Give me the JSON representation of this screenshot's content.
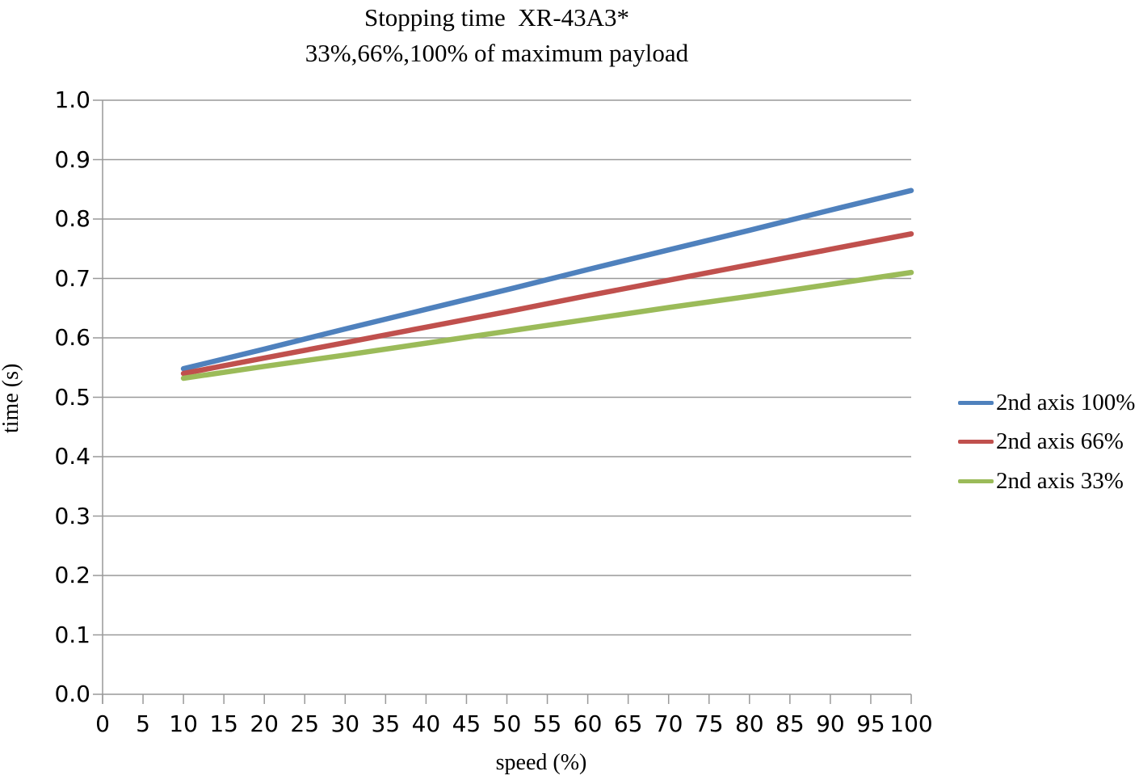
{
  "title": "Stopping time  XR-43A3*",
  "subtitle": "33%,66%,100% of maximum payload",
  "colors": {
    "gridline": "#999999",
    "axis": "#999999",
    "text": "#000000",
    "series_blue": "#4F81BD",
    "series_red": "#C0504D",
    "series_green": "#9BBB59"
  },
  "chart_data": {
    "type": "line",
    "title": "Stopping time  XR-43A3*",
    "subtitle": "33%,66%,100% of maximum payload",
    "xlabel": "speed (%)",
    "ylabel": "time (s)",
    "xlim": [
      0,
      100
    ],
    "ylim": [
      0.0,
      1.0
    ],
    "grid": "horizontal",
    "legend_position": "right",
    "x_tick_labels": [
      "0",
      "5",
      "10",
      "15",
      "20",
      "25",
      "30",
      "35",
      "40",
      "45",
      "50",
      "55",
      "60",
      "65",
      "70",
      "75",
      "80",
      "85",
      "90",
      "95",
      "100"
    ],
    "y_tick_labels": [
      "0.0",
      "0.1",
      "0.2",
      "0.3",
      "0.4",
      "0.5",
      "0.6",
      "0.7",
      "0.8",
      "0.9",
      "1.0"
    ],
    "x": [
      10,
      20,
      30,
      40,
      50,
      60,
      70,
      80,
      90,
      100
    ],
    "series": [
      {
        "name": "2nd axis 100%",
        "color": "#4F81BD",
        "values": [
          0.548,
          0.581,
          0.615,
          0.648,
          0.681,
          0.715,
          0.748,
          0.781,
          0.815,
          0.848
        ]
      },
      {
        "name": "2nd axis 66%",
        "color": "#C0504D",
        "values": [
          0.54,
          0.566,
          0.592,
          0.618,
          0.644,
          0.671,
          0.697,
          0.723,
          0.749,
          0.775
        ]
      },
      {
        "name": "2nd axis 33%",
        "color": "#9BBB59",
        "values": [
          0.532,
          0.552,
          0.571,
          0.591,
          0.611,
          0.631,
          0.651,
          0.67,
          0.69,
          0.71
        ]
      }
    ]
  }
}
